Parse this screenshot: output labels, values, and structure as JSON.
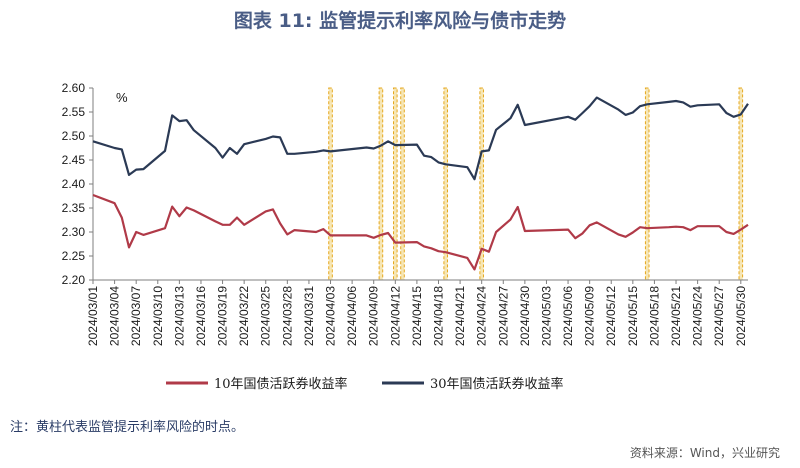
{
  "title": "图表 11: 监管提示利率风险与债市走势",
  "footnote": "注：黄柱代表监管提示利率风险的时点。",
  "source": "资料来源：Wind，兴业研究",
  "colors": {
    "series_10y": "#b03a48",
    "series_30y": "#2b3a55",
    "highlight_fill": "#f6e6b4",
    "highlight_stroke": "#e6a820",
    "title": "#4a5d86"
  },
  "chart_data": {
    "type": "line",
    "unit_label": "%",
    "ylim": [
      2.2,
      2.6
    ],
    "y_ticks": [
      "2.20",
      "2.25",
      "2.30",
      "2.35",
      "2.40",
      "2.45",
      "2.50",
      "2.55",
      "2.60"
    ],
    "x_range": [
      "2024-03-01",
      "2024-05-31"
    ],
    "x_tick_labels": [
      "2024/03/01",
      "2024/03/04",
      "2024/03/07",
      "2024/03/10",
      "2024/03/13",
      "2024/03/16",
      "2024/03/19",
      "2024/03/22",
      "2024/03/25",
      "2024/03/28",
      "2024/03/31",
      "2024/04/03",
      "2024/04/06",
      "2024/04/09",
      "2024/04/12",
      "2024/04/15",
      "2024/04/18",
      "2024/04/21",
      "2024/04/24",
      "2024/04/27",
      "2024/04/30",
      "2024/05/03",
      "2024/05/06",
      "2024/05/09",
      "2024/05/12",
      "2024/05/15",
      "2024/05/18",
      "2024/05/21",
      "2024/05/24",
      "2024/05/27",
      "2024/05/30"
    ],
    "highlight_dates": [
      "2024-04-03",
      "2024-04-10",
      "2024-04-12",
      "2024-04-13",
      "2024-04-19",
      "2024-04-24",
      "2024-05-17",
      "2024-05-30"
    ],
    "series": [
      {
        "name": "10年国债活跃券收益率",
        "points": [
          [
            "2024-03-01",
            2.377
          ],
          [
            "2024-03-04",
            2.36
          ],
          [
            "2024-03-05",
            2.33
          ],
          [
            "2024-03-06",
            2.268
          ],
          [
            "2024-03-07",
            2.3
          ],
          [
            "2024-03-08",
            2.294
          ],
          [
            "2024-03-11",
            2.308
          ],
          [
            "2024-03-12",
            2.353
          ],
          [
            "2024-03-13",
            2.333
          ],
          [
            "2024-03-14",
            2.351
          ],
          [
            "2024-03-15",
            2.345
          ],
          [
            "2024-03-18",
            2.322
          ],
          [
            "2024-03-19",
            2.315
          ],
          [
            "2024-03-20",
            2.315
          ],
          [
            "2024-03-21",
            2.33
          ],
          [
            "2024-03-22",
            2.315
          ],
          [
            "2024-03-25",
            2.343
          ],
          [
            "2024-03-26",
            2.347
          ],
          [
            "2024-03-27",
            2.318
          ],
          [
            "2024-03-28",
            2.295
          ],
          [
            "2024-03-29",
            2.304
          ],
          [
            "2024-04-01",
            2.3
          ],
          [
            "2024-04-02",
            2.306
          ],
          [
            "2024-04-03",
            2.293
          ],
          [
            "2024-04-08",
            2.293
          ],
          [
            "2024-04-09",
            2.288
          ],
          [
            "2024-04-10",
            2.294
          ],
          [
            "2024-04-11",
            2.298
          ],
          [
            "2024-04-12",
            2.278
          ],
          [
            "2024-04-15",
            2.279
          ],
          [
            "2024-04-16",
            2.27
          ],
          [
            "2024-04-17",
            2.266
          ],
          [
            "2024-04-18",
            2.26
          ],
          [
            "2024-04-19",
            2.258
          ],
          [
            "2024-04-22",
            2.246
          ],
          [
            "2024-04-23",
            2.222
          ],
          [
            "2024-04-24",
            2.265
          ],
          [
            "2024-04-25",
            2.259
          ],
          [
            "2024-04-26",
            2.3
          ],
          [
            "2024-04-28",
            2.326
          ],
          [
            "2024-04-29",
            2.352
          ],
          [
            "2024-04-30",
            2.302
          ],
          [
            "2024-05-06",
            2.305
          ],
          [
            "2024-05-07",
            2.287
          ],
          [
            "2024-05-08",
            2.297
          ],
          [
            "2024-05-09",
            2.314
          ],
          [
            "2024-05-10",
            2.32
          ],
          [
            "2024-05-13",
            2.295
          ],
          [
            "2024-05-14",
            2.29
          ],
          [
            "2024-05-15",
            2.299
          ],
          [
            "2024-05-16",
            2.31
          ],
          [
            "2024-05-17",
            2.308
          ],
          [
            "2024-05-20",
            2.31
          ],
          [
            "2024-05-21",
            2.311
          ],
          [
            "2024-05-22",
            2.31
          ],
          [
            "2024-05-23",
            2.304
          ],
          [
            "2024-05-24",
            2.312
          ],
          [
            "2024-05-27",
            2.312
          ],
          [
            "2024-05-28",
            2.3
          ],
          [
            "2024-05-29",
            2.296
          ],
          [
            "2024-05-30",
            2.305
          ],
          [
            "2024-05-31",
            2.315
          ]
        ]
      },
      {
        "name": "30年国债活跃券收益率",
        "points": [
          [
            "2024-03-01",
            2.489
          ],
          [
            "2024-03-04",
            2.475
          ],
          [
            "2024-03-05",
            2.472
          ],
          [
            "2024-03-06",
            2.419
          ],
          [
            "2024-03-07",
            2.43
          ],
          [
            "2024-03-08",
            2.431
          ],
          [
            "2024-03-11",
            2.469
          ],
          [
            "2024-03-12",
            2.543
          ],
          [
            "2024-03-13",
            2.531
          ],
          [
            "2024-03-14",
            2.533
          ],
          [
            "2024-03-15",
            2.512
          ],
          [
            "2024-03-18",
            2.475
          ],
          [
            "2024-03-19",
            2.455
          ],
          [
            "2024-03-20",
            2.475
          ],
          [
            "2024-03-21",
            2.463
          ],
          [
            "2024-03-22",
            2.483
          ],
          [
            "2024-03-25",
            2.494
          ],
          [
            "2024-03-26",
            2.499
          ],
          [
            "2024-03-27",
            2.497
          ],
          [
            "2024-03-28",
            2.463
          ],
          [
            "2024-03-29",
            2.463
          ],
          [
            "2024-04-01",
            2.467
          ],
          [
            "2024-04-02",
            2.47
          ],
          [
            "2024-04-03",
            2.468
          ],
          [
            "2024-04-08",
            2.476
          ],
          [
            "2024-04-09",
            2.474
          ],
          [
            "2024-04-10",
            2.48
          ],
          [
            "2024-04-11",
            2.489
          ],
          [
            "2024-04-12",
            2.481
          ],
          [
            "2024-04-15",
            2.482
          ],
          [
            "2024-04-16",
            2.459
          ],
          [
            "2024-04-17",
            2.456
          ],
          [
            "2024-04-18",
            2.445
          ],
          [
            "2024-04-19",
            2.441
          ],
          [
            "2024-04-22",
            2.435
          ],
          [
            "2024-04-23",
            2.41
          ],
          [
            "2024-04-24",
            2.468
          ],
          [
            "2024-04-25",
            2.47
          ],
          [
            "2024-04-26",
            2.513
          ],
          [
            "2024-04-28",
            2.537
          ],
          [
            "2024-04-29",
            2.565
          ],
          [
            "2024-04-30",
            2.523
          ],
          [
            "2024-05-06",
            2.54
          ],
          [
            "2024-05-07",
            2.534
          ],
          [
            "2024-05-08",
            2.548
          ],
          [
            "2024-05-09",
            2.562
          ],
          [
            "2024-05-10",
            2.58
          ],
          [
            "2024-05-13",
            2.555
          ],
          [
            "2024-05-14",
            2.544
          ],
          [
            "2024-05-15",
            2.549
          ],
          [
            "2024-05-16",
            2.562
          ],
          [
            "2024-05-17",
            2.566
          ],
          [
            "2024-05-20",
            2.571
          ],
          [
            "2024-05-21",
            2.573
          ],
          [
            "2024-05-22",
            2.57
          ],
          [
            "2024-05-23",
            2.561
          ],
          [
            "2024-05-24",
            2.564
          ],
          [
            "2024-05-27",
            2.566
          ],
          [
            "2024-05-28",
            2.548
          ],
          [
            "2024-05-29",
            2.54
          ],
          [
            "2024-05-30",
            2.545
          ],
          [
            "2024-05-31",
            2.567
          ]
        ]
      }
    ]
  }
}
